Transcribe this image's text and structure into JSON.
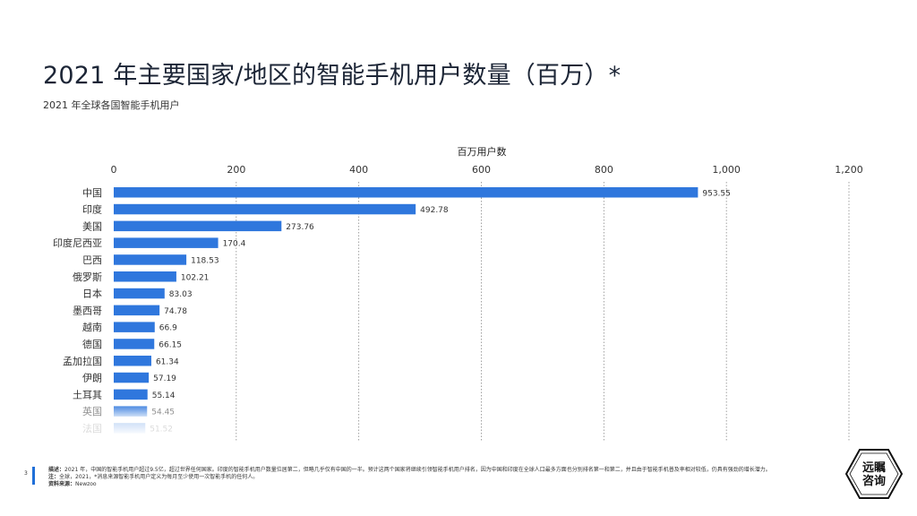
{
  "header": {
    "title": "2021 年主要国家/地区的智能手机用户数量（百万）*",
    "subtitle": "2021 年全球各国智能手机用户"
  },
  "chart_data": {
    "type": "bar",
    "orientation": "horizontal",
    "xlabel": "百万用户数",
    "xlim": [
      0,
      1200
    ],
    "x_ticks": [
      "0",
      "200",
      "400",
      "600",
      "800",
      "1,000",
      "1,200"
    ],
    "grid": true,
    "categories": [
      "中国",
      "印度",
      "美国",
      "印度尼西亚",
      "巴西",
      "俄罗斯",
      "日本",
      "墨西哥",
      "越南",
      "德国",
      "孟加拉国",
      "伊朗",
      "土耳其",
      "英国",
      "法国"
    ],
    "values": [
      953.55,
      492.78,
      273.76,
      170.4,
      118.53,
      102.21,
      83.03,
      74.78,
      66.9,
      66.15,
      61.34,
      57.19,
      55.14,
      54.45,
      51.52
    ],
    "value_labels": [
      "953.55",
      "492.78",
      "273.76",
      "170.4",
      "118.53",
      "102.21",
      "83.03",
      "74.78",
      "66.9",
      "66.15",
      "61.34",
      "57.19",
      "55.14",
      "54.45",
      "51.52"
    ],
    "bar_color": "#2f77dd",
    "faded_last": 2
  },
  "footer": {
    "page_number": "3",
    "description_label": "描述：",
    "description": "2021 年，中国的智能手机用户超过9.5亿，超过世界任何国家。印度的智能手机用户数量位居第二，但略几乎仅有中国的一半。预计这两个国家将继续引领智能手机用户排名，因为中国和印度在全球人口最多方面也分别排名第一和第二，并且由于智能手机普及率相对较低，仍具有强劲的增长潜力。",
    "note_label": "注：",
    "note": "全球，2021，*消息来源智能手机用户定义为每月至少使用一次智能手机的任何人。",
    "source_label": "资料来源：",
    "source": "Newzoo"
  },
  "logo": {
    "line1": "远瞩",
    "line2": "咨询"
  }
}
